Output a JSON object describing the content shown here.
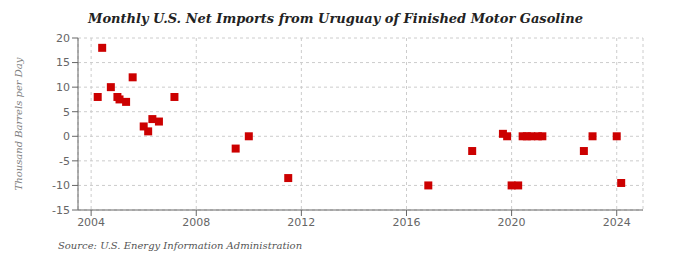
{
  "chart_data": {
    "type": "scatter",
    "title": "Monthly U.S. Net Imports from Uruguay of Finished Motor Gasoline",
    "ylabel": "Thousand Barrels per Day",
    "annotations": [
      "Source: U.S. Energy Information Administration"
    ],
    "x": [
      2004.25,
      2004.42,
      2004.75,
      2005.0,
      2005.08,
      2005.33,
      2005.58,
      2006.0,
      2006.17,
      2006.33,
      2006.58,
      2007.17,
      2009.5,
      2010.0,
      2011.5,
      2016.83,
      2018.5,
      2019.67,
      2019.83,
      2020.0,
      2020.25,
      2020.42,
      2020.58,
      2020.75,
      2021.0,
      2021.17,
      2022.75,
      2023.08,
      2024.0,
      2024.17
    ],
    "values": [
      8.0,
      18.0,
      10.0,
      8.0,
      7.5,
      7.0,
      12.0,
      2.0,
      1.0,
      3.5,
      3.0,
      8.0,
      -2.5,
      0.0,
      -8.5,
      -10.0,
      -3.0,
      0.5,
      0.0,
      -10.0,
      -10.0,
      0.0,
      0.0,
      0.0,
      0.0,
      0.0,
      -3.0,
      0.0,
      0.0,
      -9.5
    ],
    "color": "#cc0000",
    "marker": "square",
    "xlim": [
      2003.5,
      2025.0
    ],
    "ylim": [
      -15,
      20
    ],
    "xticks": [
      2004,
      2008,
      2012,
      2016,
      2020,
      2024
    ],
    "yticks": [
      -15,
      -10,
      -5,
      0,
      5,
      10,
      15,
      20
    ],
    "grid": true
  }
}
